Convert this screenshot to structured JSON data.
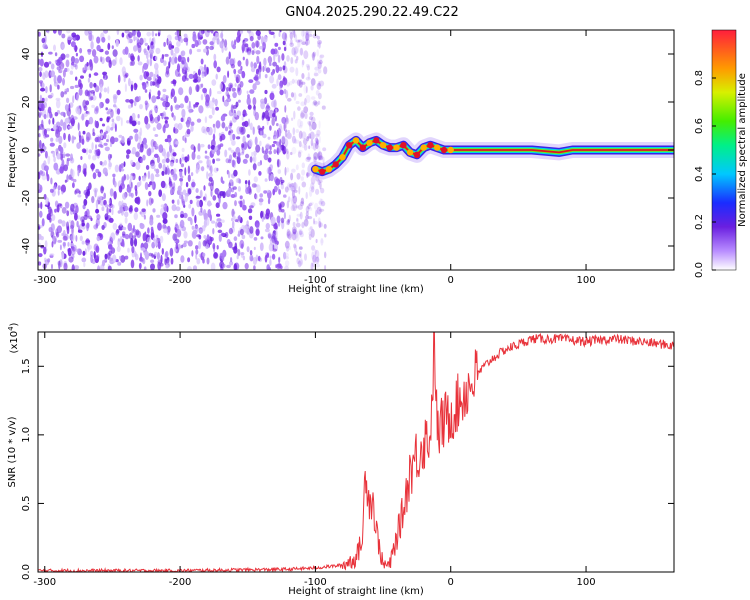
{
  "title": "GN04.2025.290.22.49.C22",
  "colors": {
    "signal": "#e8323a",
    "scatter": "#7b2fe6",
    "ridge_core": "#e0102a"
  },
  "chart_data": [
    {
      "type": "heatmap",
      "title": "GN04.2025.290.22.49.C22",
      "xlabel": "Height of straight line (km)",
      "ylabel": "Frequency (Hz)",
      "xlim": [
        -305,
        165
      ],
      "ylim": [
        -50,
        50
      ],
      "xticks": [
        -300,
        -200,
        -100,
        0,
        100
      ],
      "yticks": [
        -40,
        -20,
        0,
        20,
        40
      ],
      "colorbar": {
        "label": "Normalized spectral amplitude",
        "range": [
          0,
          1
        ],
        "ticks": [
          "0.0",
          "0.2",
          "0.4",
          "0.6",
          "0.8"
        ],
        "colormap": "rainbow"
      },
      "noise_region_x": [
        -305,
        -100
      ],
      "ridge": [
        {
          "x": -100,
          "y": -8
        },
        {
          "x": -95,
          "y": -9
        },
        {
          "x": -90,
          "y": -8
        },
        {
          "x": -85,
          "y": -6
        },
        {
          "x": -80,
          "y": -3
        },
        {
          "x": -75,
          "y": 2
        },
        {
          "x": -70,
          "y": 4
        },
        {
          "x": -65,
          "y": 1
        },
        {
          "x": -60,
          "y": 3
        },
        {
          "x": -55,
          "y": 4
        },
        {
          "x": -50,
          "y": 2
        },
        {
          "x": -45,
          "y": 1
        },
        {
          "x": -40,
          "y": 1
        },
        {
          "x": -35,
          "y": 2
        },
        {
          "x": -30,
          "y": -1
        },
        {
          "x": -25,
          "y": -2
        },
        {
          "x": -20,
          "y": 1
        },
        {
          "x": -15,
          "y": 2
        },
        {
          "x": -10,
          "y": 1
        },
        {
          "x": -5,
          "y": 0
        },
        {
          "x": 0,
          "y": 0
        },
        {
          "x": 20,
          "y": 0
        },
        {
          "x": 40,
          "y": 0
        },
        {
          "x": 60,
          "y": 0
        },
        {
          "x": 80,
          "y": -1
        },
        {
          "x": 90,
          "y": 0
        },
        {
          "x": 100,
          "y": 0
        },
        {
          "x": 120,
          "y": 0
        },
        {
          "x": 140,
          "y": 0
        },
        {
          "x": 165,
          "y": 0
        }
      ]
    },
    {
      "type": "line",
      "xlabel": "Height of straight line (km)",
      "ylabel": "SNR (10 * v/v)",
      "yscale_label": "(x10",
      "yscale_exponent": "4",
      "yscale_suffix": ")",
      "xlim": [
        -305,
        165
      ],
      "ylim": [
        0,
        1.75
      ],
      "xticks": [
        -300,
        -200,
        -100,
        0,
        100
      ],
      "yticks": [
        "0.0",
        "0.5",
        "1.0",
        "1.5"
      ],
      "series": [
        {
          "color": "#e8323a",
          "x": [
            -305,
            -200,
            -120,
            -100,
            -80,
            -70,
            -65,
            -63,
            -60,
            -58,
            -55,
            -50,
            -45,
            -40,
            -35,
            -30,
            -25,
            -20,
            -15,
            -12,
            -10,
            -5,
            0,
            10,
            20,
            30,
            40,
            60,
            80,
            100,
            120,
            140,
            165
          ],
          "y": [
            0.01,
            0.01,
            0.02,
            0.03,
            0.05,
            0.1,
            0.25,
            0.8,
            0.5,
            0.55,
            0.3,
            0.05,
            0.05,
            0.25,
            0.45,
            0.75,
            0.85,
            0.95,
            1.0,
            1.7,
            1.0,
            1.1,
            1.15,
            1.3,
            1.45,
            1.55,
            1.62,
            1.7,
            1.7,
            1.68,
            1.7,
            1.68,
            1.65
          ]
        }
      ]
    }
  ]
}
